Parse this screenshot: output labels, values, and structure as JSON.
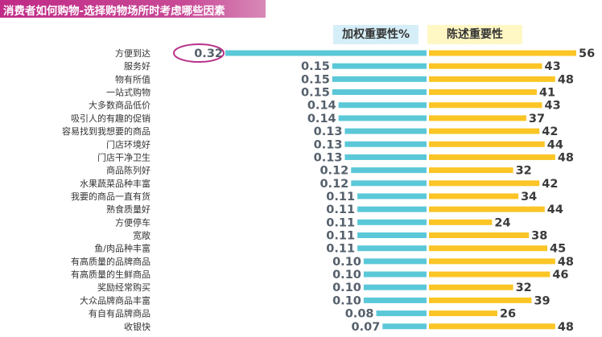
{
  "title": "消费者如何购物-选择购物场所时考虑哪些因素",
  "headers": {
    "weighted": "加权重要性%",
    "stated": "陈述重要性"
  },
  "colors": {
    "weighted_bar": "#5bc8d8",
    "stated_bar": "#fbc526",
    "title_bg": "#c02a86",
    "highlight": "#b8328a"
  },
  "chart_data": {
    "type": "bar",
    "orientation": "horizontal",
    "categories": [
      "方便到达",
      "服务好",
      "物有所值",
      "一站式购物",
      "大多数商品低价",
      "吸引人的有趣的促销",
      "容易找到我想要的商品",
      "门店环境好",
      "门店干净卫生",
      "商品陈列好",
      "水果蔬菜品种丰富",
      "我要的商品一直有货",
      "熟食质量好",
      "方便停车",
      "宽敞",
      "鱼/肉品种丰富",
      "有高质量的品牌商品",
      "有高质量的生鲜商品",
      "奖励经常购买",
      "大众品牌商品丰富",
      "有自有品牌商品",
      "收银快"
    ],
    "series": [
      {
        "name": "加权重要性%",
        "values": [
          0.32,
          0.15,
          0.15,
          0.15,
          0.14,
          0.14,
          0.13,
          0.13,
          0.13,
          0.12,
          0.12,
          0.11,
          0.11,
          0.11,
          0.11,
          0.11,
          0.1,
          0.1,
          0.1,
          0.1,
          0.08,
          0.07
        ]
      },
      {
        "name": "陈述重要性",
        "values": [
          56,
          43,
          48,
          41,
          43,
          37,
          42,
          44,
          48,
          32,
          42,
          34,
          44,
          24,
          38,
          45,
          48,
          46,
          32,
          39,
          26,
          48
        ]
      }
    ],
    "weighted_labels": [
      "0.32",
      "0.15",
      "0.15",
      "0.15",
      "0.14",
      "0.14",
      "0.13",
      "0.13",
      "0.13",
      "0.12",
      "0.12",
      "0.11",
      "0.11",
      "0.11",
      "0.11",
      "0.11",
      "0.10",
      "0.10",
      "0.10",
      "0.10",
      "0.08",
      "0.07"
    ],
    "stated_labels": [
      "56",
      "43",
      "48",
      "41",
      "43",
      "37",
      "42",
      "44",
      "48",
      "32",
      "42",
      "34",
      "44",
      "24",
      "38",
      "45",
      "48",
      "46",
      "32",
      "39",
      "26",
      "48"
    ],
    "highlighted_category": "方便到达",
    "legend": "top"
  }
}
